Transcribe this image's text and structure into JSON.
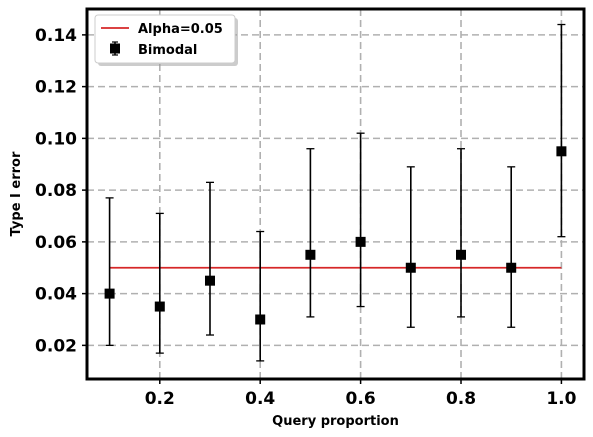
{
  "chart_data": {
    "type": "scatter",
    "title": "",
    "xlabel": "Query proportion",
    "ylabel": "Type I error",
    "xlim": [
      0.055,
      1.045
    ],
    "ylim": [
      0.007,
      0.15
    ],
    "xticks": [
      0.2,
      0.4,
      0.6,
      0.8,
      1.0
    ],
    "xtick_labels": [
      "0.2",
      "0.4",
      "0.6",
      "0.8",
      "1.0"
    ],
    "yticks": [
      0.02,
      0.04,
      0.06,
      0.08,
      0.1,
      0.12,
      0.14
    ],
    "ytick_labels": [
      "0.02",
      "0.04",
      "0.06",
      "0.08",
      "0.10",
      "0.12",
      "0.14"
    ],
    "grid": true,
    "legend_position": "top-left",
    "series": [
      {
        "name": "Alpha=0.05",
        "kind": "line",
        "color": "#d62728",
        "x": [
          0.1,
          1.0
        ],
        "y": [
          0.05,
          0.05
        ]
      },
      {
        "name": "Bimodal",
        "kind": "errorbar",
        "color": "#000000",
        "marker": "square",
        "x": [
          0.1,
          0.2,
          0.3,
          0.4,
          0.5,
          0.6,
          0.7,
          0.8,
          0.9,
          1.0
        ],
        "y": [
          0.04,
          0.035,
          0.045,
          0.03,
          0.055,
          0.06,
          0.05,
          0.055,
          0.05,
          0.095
        ],
        "y_lower": [
          0.02,
          0.017,
          0.024,
          0.014,
          0.031,
          0.035,
          0.027,
          0.031,
          0.027,
          0.062
        ],
        "y_upper": [
          0.077,
          0.071,
          0.083,
          0.064,
          0.096,
          0.102,
          0.089,
          0.096,
          0.089,
          0.144
        ]
      }
    ]
  }
}
